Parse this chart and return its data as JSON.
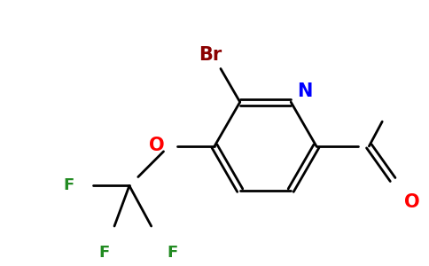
{
  "background_color": "#ffffff",
  "bond_color": "#000000",
  "atom_colors": {
    "Br": "#8b0000",
    "N": "#0000ff",
    "O": "#ff0000",
    "F": "#228b22",
    "aldehyde_O": "#ff0000"
  },
  "font_size_atoms": 15,
  "font_size_F": 13,
  "figsize": [
    4.84,
    3.0
  ],
  "dpi": 100
}
